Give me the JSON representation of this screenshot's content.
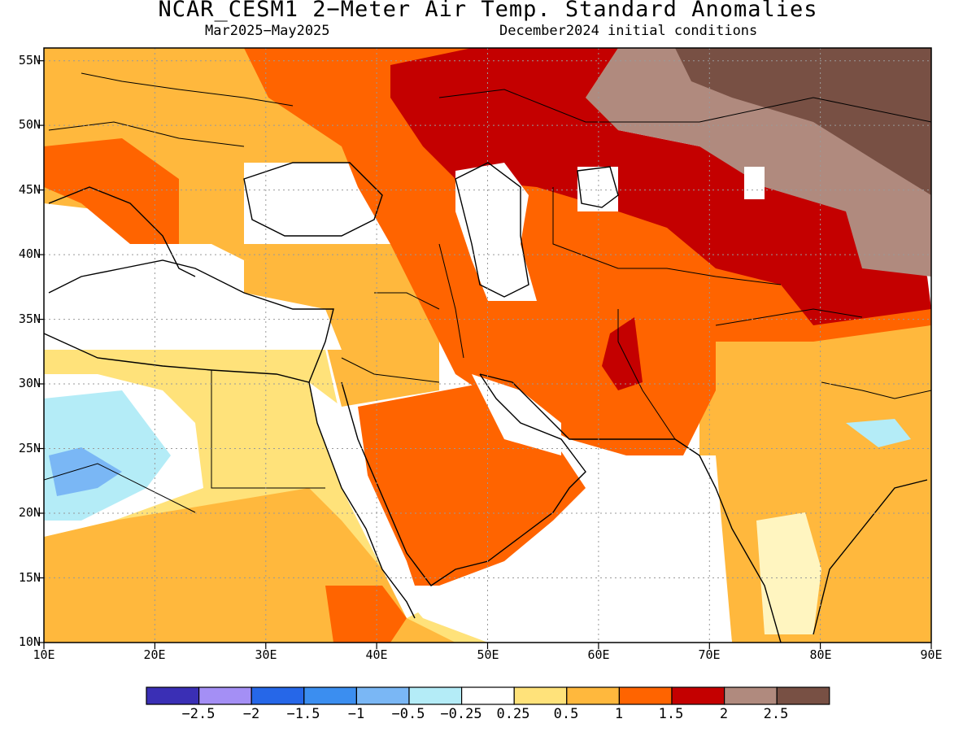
{
  "header": {
    "title": "NCAR_CESM1 2−Meter Air Temp. Standard Anomalies",
    "period": "Mar2025−May2025",
    "init": "December2024 initial conditions"
  },
  "map": {
    "lon_range": [
      10,
      90
    ],
    "lat_range": [
      10,
      56
    ],
    "lon_labels": [
      "10E",
      "20E",
      "30E",
      "40E",
      "50E",
      "60E",
      "70E",
      "80E",
      "90E"
    ],
    "lat_labels": [
      "10N",
      "15N",
      "20N",
      "25N",
      "30N",
      "35N",
      "40N",
      "45N",
      "50N",
      "55N"
    ],
    "grid": "dotted gray every 10° lon, 5° lat"
  },
  "legend": {
    "colors": [
      "#3a2fb5",
      "#a48ff5",
      "#2667e8",
      "#3b8ef0",
      "#7ab7f5",
      "#b4ecf7",
      "#ffffff",
      "#ffe27a",
      "#ffb83d",
      "#ff6400",
      "#c40000",
      "#b08a7e",
      "#785044"
    ],
    "labels": [
      "−2.5",
      "−2",
      "−1.5",
      "−1",
      "−0.5",
      "−0.25",
      "0.25",
      "0.5",
      "1",
      "1.5",
      "2",
      "2.5"
    ]
  }
}
